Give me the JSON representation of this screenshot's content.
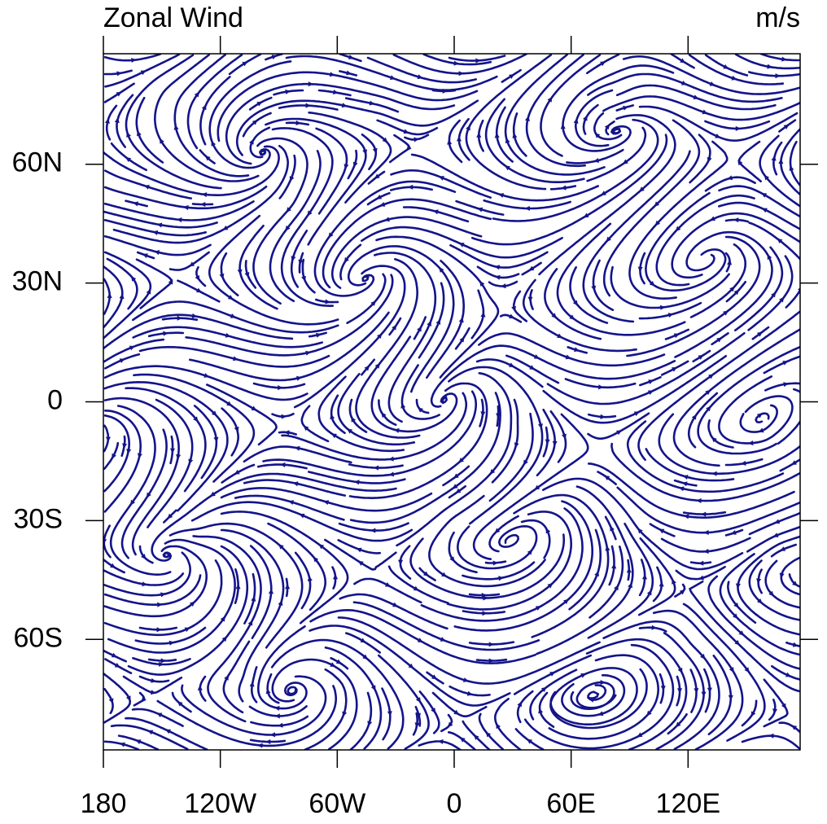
{
  "chart_data": {
    "type": "streamline",
    "title": "Zonal Wind",
    "units": "m/s",
    "color": "#14148a",
    "xlim": [
      -180,
      177.5
    ],
    "xticks": [
      {
        "value": -180,
        "label": "180"
      },
      {
        "value": -120,
        "label": "120W"
      },
      {
        "value": -60,
        "label": "60W"
      },
      0,
      {
        "value": 60,
        "label": "60E"
      },
      {
        "value": 120,
        "label": "120E"
      }
    ],
    "ylim": [
      -87.9,
      87.9
    ],
    "yticks": [
      {
        "value": 60,
        "label": "60N"
      },
      {
        "value": 30,
        "label": "30N"
      },
      0,
      {
        "value": -30,
        "label": "30S"
      },
      {
        "value": -60,
        "label": "60S"
      }
    ]
  }
}
